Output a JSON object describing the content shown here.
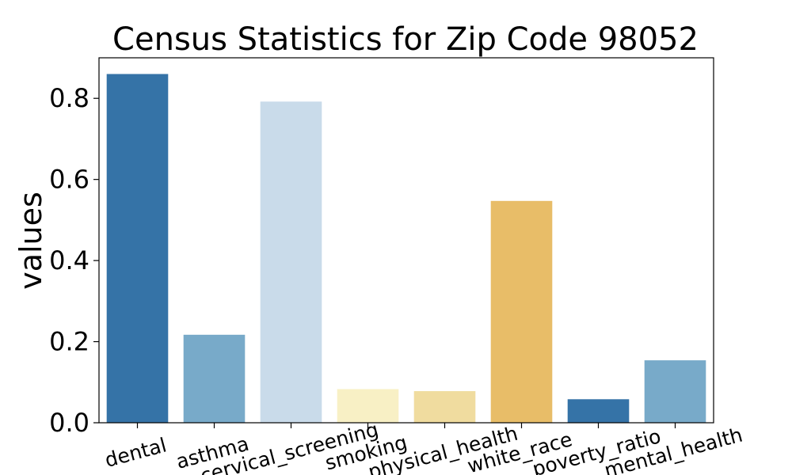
{
  "chart_data": {
    "type": "bar",
    "title": "Census Statistics for Zip Code 98052",
    "xlabel": "",
    "ylabel": "values",
    "ylim": [
      0,
      0.9
    ],
    "yticks": [
      "0.0",
      "0.2",
      "0.4",
      "0.6",
      "0.8"
    ],
    "ytick_values": [
      0.0,
      0.2,
      0.4,
      0.6,
      0.8
    ],
    "categories": [
      "dental",
      "asthma",
      "cervical_screening",
      "smoking",
      "physical_health",
      "white_race",
      "poverty_ratio",
      "mental_health"
    ],
    "values": [
      0.86,
      0.217,
      0.792,
      0.083,
      0.078,
      0.547,
      0.058,
      0.154
    ],
    "colors": [
      "#3573a7",
      "#78aac9",
      "#c9dbea",
      "#f8f0c5",
      "#f0dc9f",
      "#e8bd68",
      "#3573a7",
      "#78aac9"
    ],
    "grid": false,
    "legend": "none"
  }
}
